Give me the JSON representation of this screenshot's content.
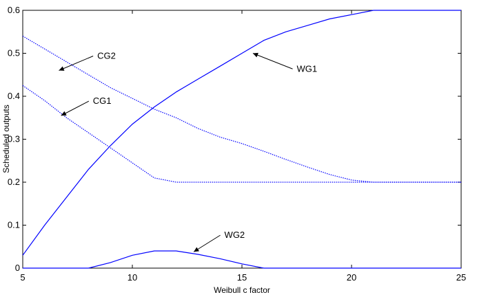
{
  "chart_data": {
    "type": "line",
    "title": "",
    "xlabel": "Weibull c factor",
    "ylabel": "Scheduled outputs",
    "xlim": [
      5,
      25
    ],
    "ylim": [
      0,
      0.6
    ],
    "xticks": [
      5,
      10,
      15,
      20,
      25
    ],
    "xtick_labels": [
      "5",
      "10",
      "15",
      "20",
      "25"
    ],
    "yticks": [
      0,
      0.1,
      0.2,
      0.3,
      0.4,
      0.5,
      0.6
    ],
    "ytick_labels": [
      "0",
      "0.1",
      "0.2",
      "0.3",
      "0.4",
      "0.5",
      "0.6"
    ],
    "grid": false,
    "legend": "none",
    "line_color": "#0000ff",
    "series": [
      {
        "name": "WG1",
        "line_style": "solid",
        "x": [
          5,
          6,
          7,
          8,
          9,
          10,
          11,
          12,
          13,
          14,
          15,
          16,
          17,
          18,
          19,
          20,
          21,
          22,
          23,
          24,
          25
        ],
        "y": [
          0.03,
          0.1,
          0.165,
          0.23,
          0.285,
          0.335,
          0.375,
          0.41,
          0.44,
          0.47,
          0.5,
          0.53,
          0.55,
          0.565,
          0.58,
          0.59,
          0.6,
          0.6,
          0.6,
          0.6,
          0.6
        ]
      },
      {
        "name": "WG2",
        "line_style": "solid",
        "x": [
          5,
          6,
          7,
          8,
          9,
          10,
          11,
          12,
          13,
          14,
          15,
          16,
          17,
          18,
          19,
          20,
          21,
          22,
          23,
          24,
          25
        ],
        "y": [
          0,
          0,
          0,
          0,
          0.013,
          0.03,
          0.04,
          0.04,
          0.032,
          0.022,
          0.01,
          0,
          0,
          0,
          0,
          0,
          0,
          0,
          0,
          0,
          0
        ]
      },
      {
        "name": "CG1",
        "line_style": "dotted",
        "x": [
          5,
          6,
          7,
          8,
          9,
          10,
          11,
          12,
          13,
          14,
          15,
          16,
          17,
          18,
          19,
          20,
          21,
          22,
          23,
          24,
          25
        ],
        "y": [
          0.425,
          0.39,
          0.35,
          0.315,
          0.28,
          0.245,
          0.21,
          0.2,
          0.2,
          0.2,
          0.2,
          0.2,
          0.2,
          0.2,
          0.2,
          0.2,
          0.2,
          0.2,
          0.2,
          0.2,
          0.2
        ]
      },
      {
        "name": "CG2",
        "line_style": "dotted",
        "x": [
          5,
          6,
          7,
          8,
          9,
          10,
          11,
          12,
          13,
          14,
          15,
          16,
          17,
          18,
          19,
          20,
          21,
          22,
          23,
          24,
          25
        ],
        "y": [
          0.54,
          0.51,
          0.48,
          0.45,
          0.42,
          0.395,
          0.37,
          0.35,
          0.325,
          0.305,
          0.29,
          0.272,
          0.253,
          0.235,
          0.218,
          0.205,
          0.2,
          0.2,
          0.2,
          0.2,
          0.2
        ]
      }
    ],
    "annotations": [
      {
        "text": "CG2",
        "x": 6.65,
        "y": 0.46,
        "label_x": 8.4,
        "label_y": 0.5
      },
      {
        "text": "CG1",
        "x": 6.75,
        "y": 0.355,
        "label_x": 8.2,
        "label_y": 0.395
      },
      {
        "text": "WG1",
        "x": 15.5,
        "y": 0.5,
        "label_x": 17.5,
        "label_y": 0.47
      },
      {
        "text": "WG2",
        "x": 12.8,
        "y": 0.038,
        "label_x": 14.2,
        "label_y": 0.083
      }
    ]
  }
}
